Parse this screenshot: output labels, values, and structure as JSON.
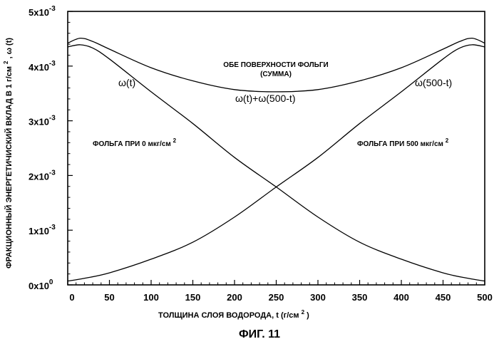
{
  "chart_data": {
    "type": "line",
    "title": "",
    "xlabel": "ТОЛЩИНА СЛОЯ ВОДОРОДА, t (г/см²)",
    "ylabel": "ФРАКЦИОННЫЙ ЭНЕРГЕТИЧИСКИЙ ВКЛАД В 1 г/см², ω (t)",
    "xlim": [
      0,
      500
    ],
    "ylim": [
      0,
      0.005
    ],
    "grid": false,
    "x_ticks": [
      "0",
      "50",
      "100",
      "150",
      "200",
      "250",
      "300",
      "350",
      "400",
      "450",
      "500"
    ],
    "y_ticks": [
      {
        "base": "0x10",
        "exp": "0"
      },
      {
        "base": "1x10",
        "exp": "-3"
      },
      {
        "base": "2x10",
        "exp": "-3"
      },
      {
        "base": "3x10",
        "exp": "-3"
      },
      {
        "base": "4x10",
        "exp": "-3"
      },
      {
        "base": "5x10",
        "exp": "-3"
      }
    ],
    "series": [
      {
        "name": "ω(t)",
        "x": [
          0,
          15,
          30,
          50,
          100,
          150,
          200,
          250,
          300,
          350,
          400,
          450,
          480,
          500
        ],
        "y": [
          0.00435,
          0.00439,
          0.00433,
          0.00413,
          0.00353,
          0.00295,
          0.00233,
          0.00179,
          0.00124,
          0.00078,
          0.00047,
          0.00022,
          0.00012,
          7e-05
        ]
      },
      {
        "name": "ω(500-t)",
        "x": [
          0,
          20,
          50,
          100,
          150,
          200,
          250,
          300,
          350,
          400,
          450,
          470,
          485,
          500
        ],
        "y": [
          7e-05,
          0.00012,
          0.00022,
          0.00047,
          0.00078,
          0.00124,
          0.00179,
          0.00233,
          0.00295,
          0.00353,
          0.00413,
          0.00433,
          0.00439,
          0.00435
        ]
      },
      {
        "name": "ω(t)+ω(500-t)",
        "x": [
          0,
          15,
          30,
          50,
          100,
          150,
          200,
          250,
          300,
          350,
          400,
          450,
          470,
          485,
          500
        ],
        "y": [
          0.00442,
          0.00451,
          0.00445,
          0.00431,
          0.00397,
          0.00373,
          0.00357,
          0.00353,
          0.00357,
          0.00373,
          0.00397,
          0.00431,
          0.00445,
          0.00451,
          0.00442
        ]
      }
    ],
    "annotations": {
      "sum_title_line1": "ОБЕ ПОВЕРХНОСТИ ФОЛЬГИ",
      "sum_title_line2": "(СУММА)",
      "omega_t": "ω(t)",
      "omega_sum": "ω(t)+ω(500-t)",
      "omega_500": "ω(500-t)",
      "foil_left": "ФОЛЬГА ПРИ 0 мкг/см",
      "foil_left_sup": "2",
      "foil_right": "ФОЛЬГА ПРИ 500 мкг/см",
      "foil_right_sup": "2"
    },
    "axis_text": {
      "xlabel_main": "ТОЛЩИНА СЛОЯ ВОДОРОДА, t (г/см",
      "xlabel_sup": "2",
      "xlabel_end": ")",
      "ylabel_main": "ФРАКЦИОННЫЙ ЭНЕРГЕТИЧИСКИЙ ВКЛАД В 1 г/см",
      "ylabel_sup": "2",
      "ylabel_end": ",  ω (t)"
    },
    "figure_label": "ФИГ. 11"
  }
}
